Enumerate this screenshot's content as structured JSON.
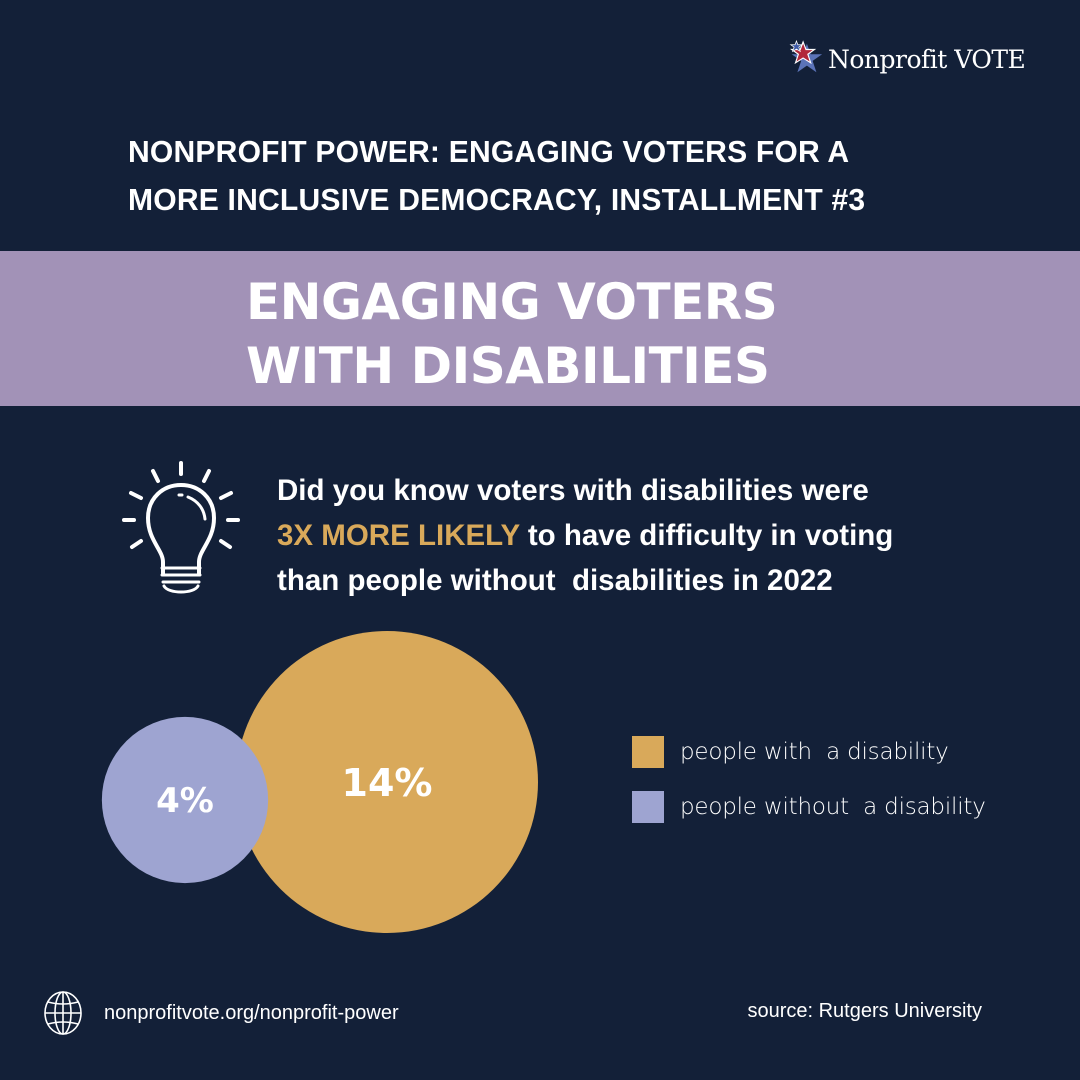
{
  "brand": {
    "logo_text": "Nonprofit VOTE",
    "logo_icon": "star-icon",
    "colors": {
      "background": "#132038",
      "band": "#a292b7",
      "accent_gold": "#d9a95a",
      "accent_lavender": "#9ea4d1",
      "star_red": "#b2283a",
      "star_blue": "#5b73b8"
    }
  },
  "header": {
    "series_title_line1": "NONPROFIT POWER: ENGAGING VOTERS FOR A",
    "series_title_line2": "MORE INCLUSIVE DEMOCRACY, INSTALLMENT #3",
    "band_title_line1": "ENGAGING VOTERS",
    "band_title_line2": "WITH DISABILITIES"
  },
  "fact": {
    "icon": "lightbulb-icon",
    "line1": "Did you know voters with disabilities were",
    "highlight": "3X MORE LIKELY",
    "line2_rest": " to have difficulty in voting",
    "line3": "than people without  disabilities in 2022"
  },
  "chart_data": {
    "type": "bubble",
    "title": "",
    "series": [
      {
        "name": "people with  a disability",
        "value": 14,
        "label": "14%",
        "color": "#d9a95a"
      },
      {
        "name": "people without  a disability",
        "value": 4,
        "label": "4%",
        "color": "#9ea4d1"
      }
    ],
    "legend_position": "right",
    "unit": "%"
  },
  "footer": {
    "icon": "globe-icon",
    "url": "nonprofitvote.org/nonprofit-power",
    "source": "source: Rutgers University"
  }
}
